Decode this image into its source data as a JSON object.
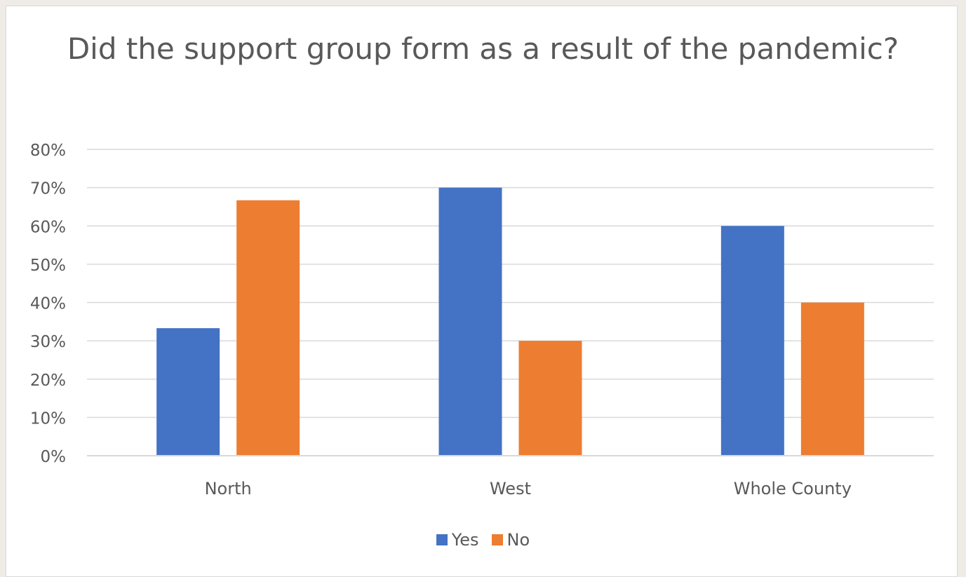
{
  "chart_data": {
    "type": "bar",
    "title": "Did the support group form as a result of the pandemic?",
    "categories": [
      "North",
      "West",
      "Whole County"
    ],
    "series": [
      {
        "name": "Yes",
        "color": "#4472c4",
        "values": [
          0.333,
          0.7,
          0.6
        ]
      },
      {
        "name": "No",
        "color": "#ed7d31",
        "values": [
          0.667,
          0.3,
          0.4
        ]
      }
    ],
    "ylim": [
      0,
      0.8
    ],
    "yticks": [
      "0%",
      "10%",
      "20%",
      "30%",
      "40%",
      "50%",
      "60%",
      "70%",
      "80%"
    ],
    "grid": true,
    "legend_position": "bottom"
  }
}
